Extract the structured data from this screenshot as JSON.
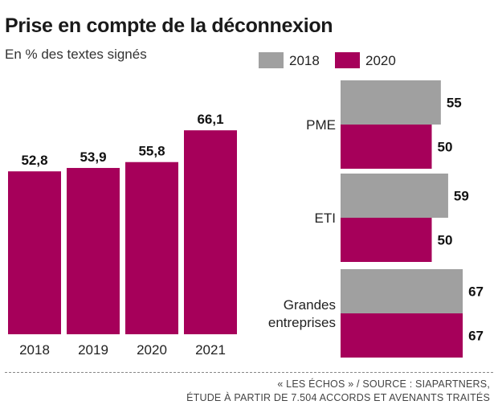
{
  "title": "Prise en compte de la déconnexion",
  "subtitle": "En % des textes signés",
  "source_line1": "« LES ÉCHOS » / SOURCE : SIAPARTNERS,",
  "source_line2": "ÉTUDE À PARTIR DE 7.504 ACCORDS ET AVENANTS TRAITÉS",
  "colors": {
    "bar_2018": "#a0a0a0",
    "bar_2020": "#a6005a",
    "primary": "#a6005a"
  },
  "chart_data": [
    {
      "type": "bar",
      "categories": [
        "2018",
        "2019",
        "2020",
        "2021"
      ],
      "values": [
        52.8,
        53.9,
        55.8,
        66.1
      ],
      "labels": [
        "52,8",
        "53,9",
        "55,8",
        "66,1"
      ],
      "ylim": [
        0,
        70
      ]
    },
    {
      "type": "bar",
      "orientation": "horizontal",
      "categories": [
        "PME",
        "ETI",
        "Grandes entreprises"
      ],
      "category_lines": [
        [
          "PME"
        ],
        [
          "ETI"
        ],
        [
          "Grandes",
          "entreprises"
        ]
      ],
      "series": [
        {
          "name": "2018",
          "values": [
            55,
            59,
            67
          ]
        },
        {
          "name": "2020",
          "values": [
            50,
            50,
            67
          ]
        }
      ],
      "xlim": [
        0,
        67
      ],
      "legend_position": "top-right"
    }
  ]
}
